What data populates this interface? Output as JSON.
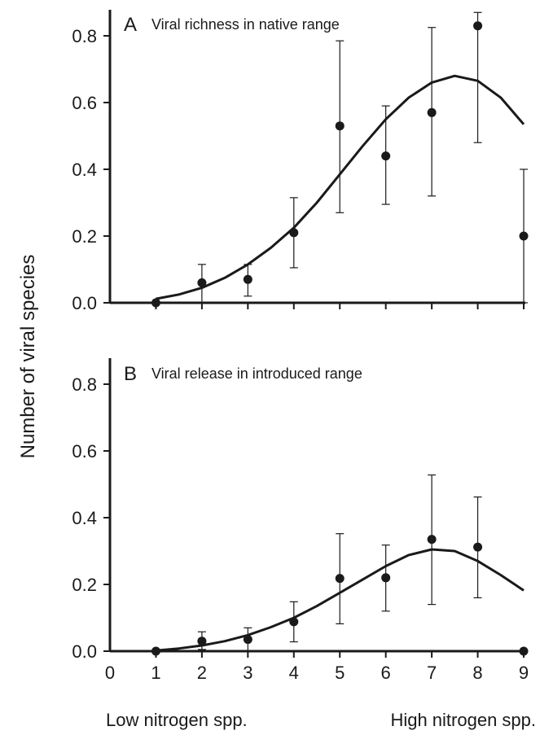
{
  "chart_data": [
    {
      "type": "scatter",
      "panel_letter": "A",
      "title": "Viral richness in native range",
      "x": [
        1,
        2,
        3,
        4,
        5,
        6,
        7,
        8,
        9
      ],
      "y": [
        0.0,
        0.06,
        0.07,
        0.21,
        0.53,
        0.44,
        0.57,
        0.83,
        0.2
      ],
      "error_low": [
        0.0,
        0.0,
        0.02,
        0.105,
        0.27,
        0.295,
        0.32,
        0.48,
        0.0
      ],
      "error_high": [
        0.0,
        0.115,
        0.115,
        0.315,
        0.785,
        0.59,
        0.825,
        0.87,
        0.4
      ],
      "fit_curve": {
        "x": [
          1,
          1.5,
          2,
          2.5,
          3,
          3.5,
          4,
          4.5,
          5,
          5.5,
          6,
          6.5,
          7,
          7.5,
          8,
          8.5,
          9
        ],
        "y": [
          0.012,
          0.025,
          0.045,
          0.075,
          0.115,
          0.165,
          0.225,
          0.3,
          0.385,
          0.47,
          0.55,
          0.615,
          0.66,
          0.68,
          0.665,
          0.615,
          0.535
        ]
      },
      "xlim": [
        0,
        9
      ],
      "ylim": [
        0,
        0.8
      ],
      "yticks": [
        "0.0",
        "0.2",
        "0.4",
        "0.6",
        "0.8"
      ]
    },
    {
      "type": "scatter",
      "panel_letter": "B",
      "title": "Viral release  in introduced range",
      "x": [
        1,
        2,
        3,
        4,
        5,
        6,
        7,
        8,
        9
      ],
      "y": [
        0.0,
        0.03,
        0.035,
        0.088,
        0.218,
        0.22,
        0.335,
        0.312,
        0.0
      ],
      "error_low": [
        0.0,
        0.005,
        0.0,
        0.028,
        0.082,
        0.12,
        0.14,
        0.16,
        0.0
      ],
      "error_high": [
        0.0,
        0.058,
        0.07,
        0.148,
        0.352,
        0.318,
        0.528,
        0.462,
        0.0
      ],
      "fit_curve": {
        "x": [
          1,
          1.5,
          2,
          2.5,
          3,
          3.5,
          4,
          4.5,
          5,
          5.5,
          6,
          6.5,
          7,
          7.5,
          8,
          8.5,
          9
        ],
        "y": [
          0.002,
          0.008,
          0.017,
          0.03,
          0.048,
          0.072,
          0.1,
          0.135,
          0.175,
          0.215,
          0.255,
          0.288,
          0.305,
          0.3,
          0.27,
          0.228,
          0.182
        ]
      },
      "xlim": [
        0,
        9
      ],
      "ylim": [
        0,
        0.8
      ],
      "yticks": [
        "0.0",
        "0.2",
        "0.4",
        "0.6",
        "0.8"
      ],
      "xticks": [
        "0",
        "1",
        "2",
        "3",
        "4",
        "5",
        "6",
        "7",
        "8",
        "9"
      ]
    }
  ],
  "ylabel": "Number of viral species",
  "xlabel_left": "Low nitrogen spp.",
  "xlabel_right": "High nitrogen spp."
}
